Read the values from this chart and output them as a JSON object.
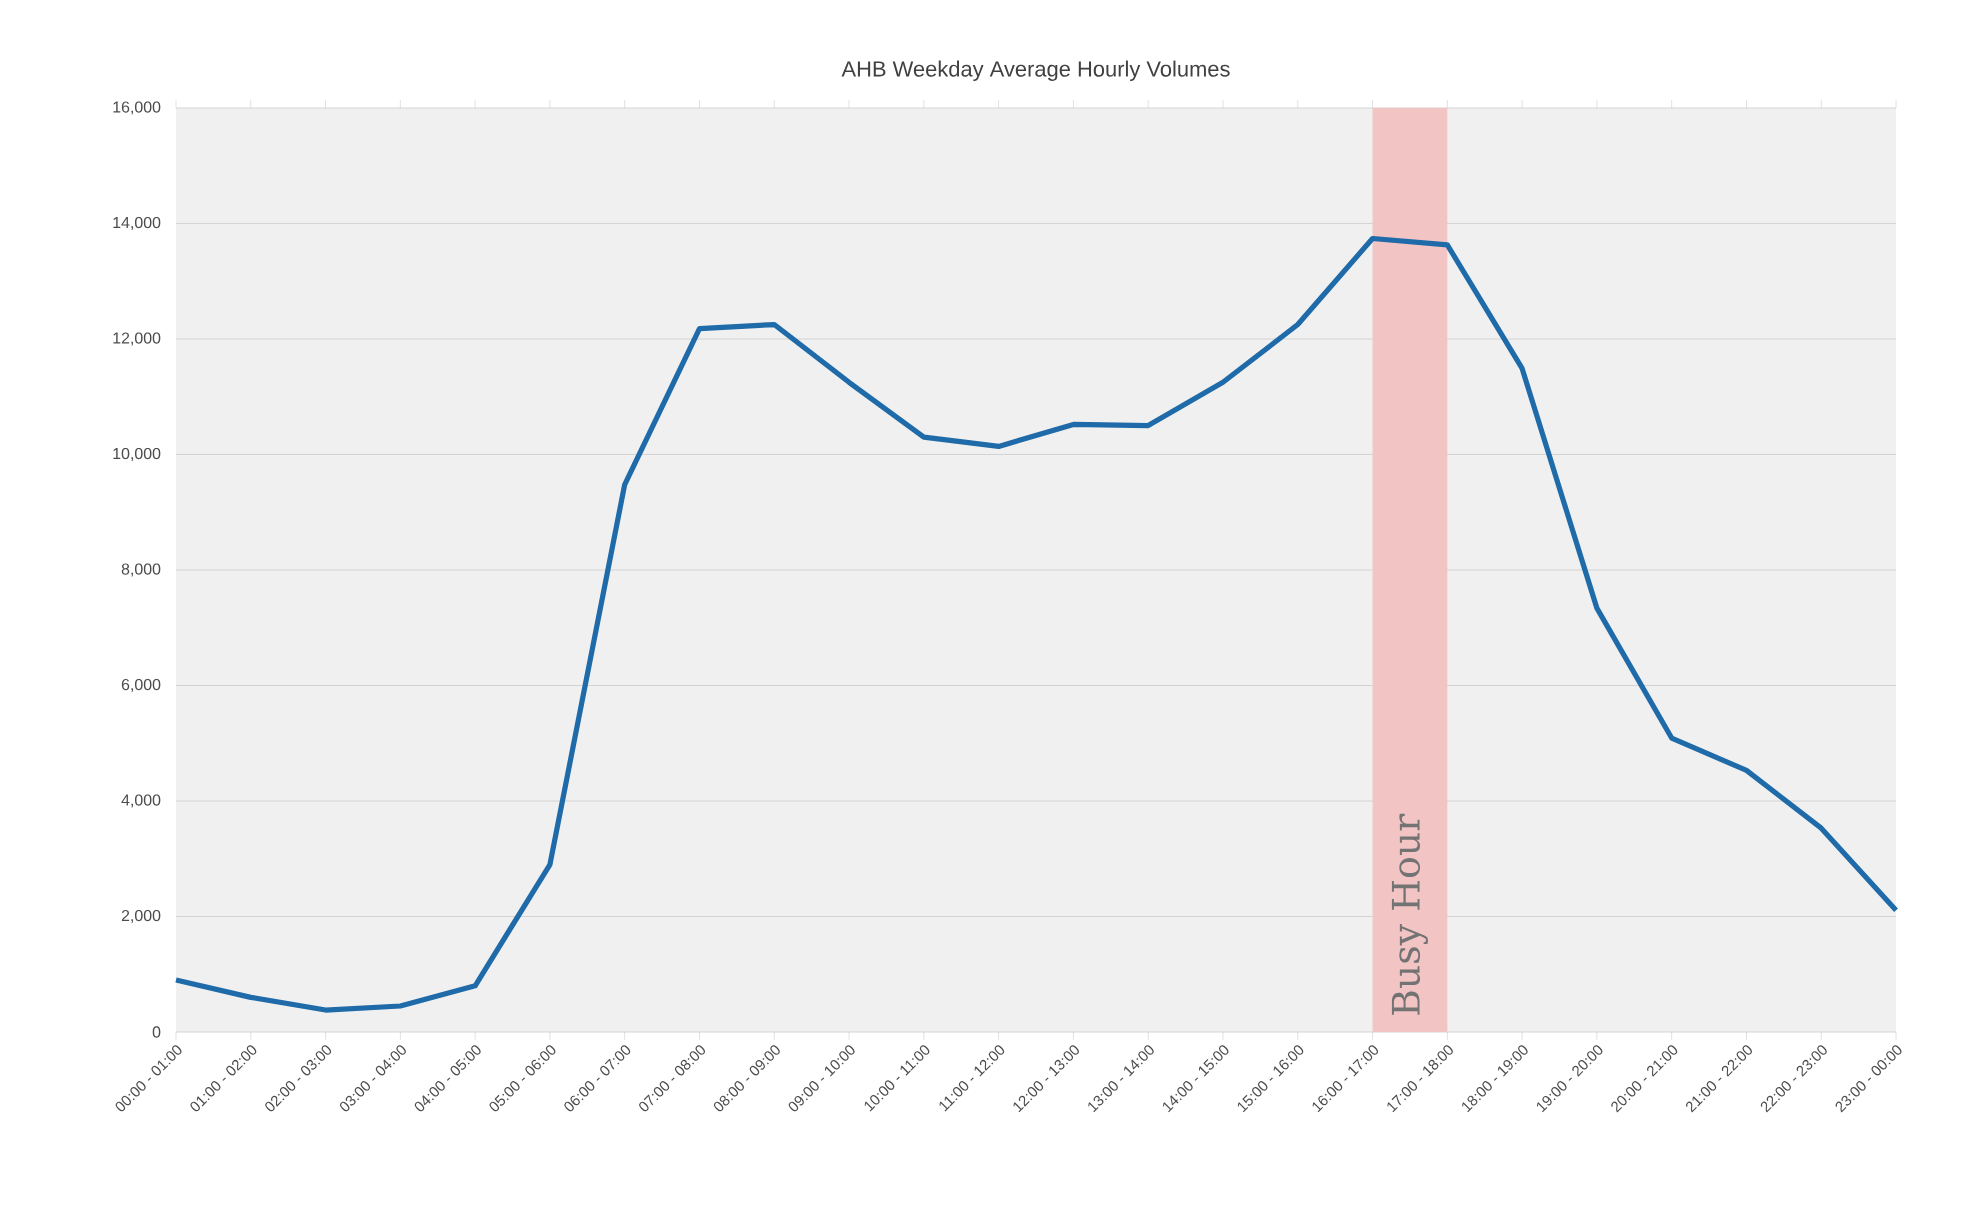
{
  "chart_data": {
    "type": "line",
    "title": "AHB Weekday Average Hourly Volumes",
    "categories": [
      "00:00 - 01:00",
      "01:00 - 02:00",
      "02:00 - 03:00",
      "03:00 - 04:00",
      "04:00 - 05:00",
      "05:00 - 06:00",
      "06:00 - 07:00",
      "07:00 - 08:00",
      "08:00 - 09:00",
      "09:00 - 10:00",
      "10:00 - 11:00",
      "11:00 - 12:00",
      "12:00 - 13:00",
      "13:00 - 14:00",
      "14:00 - 15:00",
      "15:00 - 16:00",
      "16:00 - 17:00",
      "17:00 - 18:00",
      "18:00 - 19:00",
      "19:00 - 20:00",
      "20:00 - 21:00",
      "21:00 - 22:00",
      "22:00 - 23:00",
      "23:00 - 00:00"
    ],
    "values": [
      900,
      600,
      380,
      450,
      800,
      2900,
      9480,
      12180,
      12250,
      11250,
      10300,
      10140,
      10520,
      10500,
      11250,
      12250,
      13740,
      13630,
      11490,
      7340,
      5090,
      4530,
      3530,
      2110
    ],
    "color": "#1f6aa8",
    "ylim": [
      0,
      16000
    ],
    "yticks": [
      {
        "value": 0,
        "label": "0"
      },
      {
        "value": 2000,
        "label": "2,000"
      },
      {
        "value": 4000,
        "label": "4,000"
      },
      {
        "value": 6000,
        "label": "6,000"
      },
      {
        "value": 8000,
        "label": "8,000"
      },
      {
        "value": 10000,
        "label": "10,000"
      },
      {
        "value": 12000,
        "label": "12,000"
      },
      {
        "value": 14000,
        "label": "14,000"
      },
      {
        "value": 16000,
        "label": "16,000"
      }
    ],
    "grid": "y",
    "bands": [
      {
        "axis": "x",
        "from": "16:00 - 17:00",
        "to": "17:00 - 18:00",
        "label": "Busy Hour",
        "color": "#f2c4c4"
      }
    ]
  }
}
